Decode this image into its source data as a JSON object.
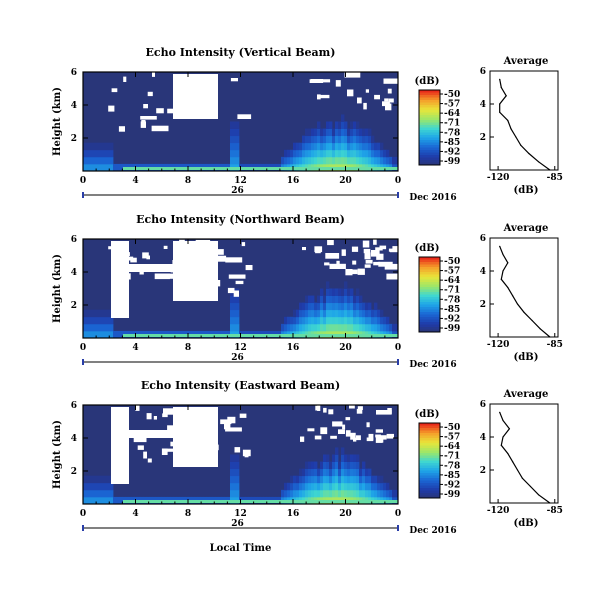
{
  "chart_data": [
    {
      "type": "heatmap",
      "title": "Echo Intensity (Vertical Beam)",
      "ylabel": "Height (km)",
      "ylim": [
        0,
        6
      ],
      "yticks": [
        "2",
        "4",
        "6"
      ],
      "xticks": [
        "0",
        "4",
        "8",
        "12",
        "16",
        "20",
        "0"
      ],
      "day_label": "26",
      "date_label": "Dec 2016",
      "colorbar": {
        "label": "(dB)",
        "ticks": [
          "-50",
          "-57",
          "-64",
          "-71",
          "-78",
          "-85",
          "-92",
          "-99"
        ]
      },
      "profile": {
        "title": "Average",
        "xlabel": "(dB)",
        "xticks": [
          "-120",
          "-85"
        ],
        "yticks": [
          "2",
          "4",
          "6"
        ],
        "height_km": [
          0.0,
          0.5,
          1.0,
          1.5,
          2.0,
          2.5,
          3.0,
          3.5,
          4.0,
          4.5,
          5.0,
          5.5
        ],
        "db": [
          -88,
          -95,
          -101,
          -106,
          -109,
          -112,
          -114,
          -119,
          -119,
          -115,
          -118,
          -119
        ]
      }
    },
    {
      "type": "heatmap",
      "title": "Echo Intensity (Northward Beam)",
      "ylabel": "Height (km)",
      "ylim": [
        0,
        6
      ],
      "yticks": [
        "2",
        "4",
        "6"
      ],
      "xticks": [
        "0",
        "4",
        "8",
        "12",
        "16",
        "20",
        "0"
      ],
      "day_label": "26",
      "date_label": "Dec 2016",
      "colorbar": {
        "label": "(dB)",
        "ticks": [
          "-50",
          "-57",
          "-64",
          "-71",
          "-78",
          "-85",
          "-92",
          "-99"
        ]
      },
      "profile": {
        "title": "Average",
        "xlabel": "(dB)",
        "xticks": [
          "-120",
          "-85"
        ],
        "yticks": [
          "2",
          "4",
          "6"
        ],
        "height_km": [
          0.0,
          0.5,
          1.0,
          1.5,
          2.0,
          2.5,
          3.0,
          3.5,
          4.0,
          4.5,
          5.0,
          5.5
        ],
        "db": [
          -88,
          -94,
          -99,
          -104,
          -108,
          -111,
          -114,
          -118,
          -117,
          -114,
          -117,
          -119
        ]
      }
    },
    {
      "type": "heatmap",
      "title": "Echo Intensity (Eastward Beam)",
      "ylabel": "Height (km)",
      "ylim": [
        0,
        6
      ],
      "yticks": [
        "2",
        "4",
        "6"
      ],
      "xticks": [
        "0",
        "4",
        "8",
        "12",
        "16",
        "20",
        "0"
      ],
      "day_label": "26",
      "date_label": "Dec 2016",
      "xlabel": "Local Time",
      "colorbar": {
        "label": "(dB)",
        "ticks": [
          "-50",
          "-57",
          "-64",
          "-71",
          "-78",
          "-85",
          "-92",
          "-99"
        ]
      },
      "profile": {
        "title": "Average",
        "xlabel": "(dB)",
        "xticks": [
          "-120",
          "-85"
        ],
        "yticks": [
          "2",
          "4",
          "6"
        ],
        "height_km": [
          0.0,
          0.5,
          1.0,
          1.5,
          2.0,
          2.5,
          3.0,
          3.5,
          4.0,
          4.5,
          5.0,
          5.5
        ],
        "db": [
          -88,
          -95,
          -100,
          -105,
          -108,
          -111,
          -114,
          -118,
          -117,
          -113,
          -117,
          -119
        ]
      }
    }
  ]
}
